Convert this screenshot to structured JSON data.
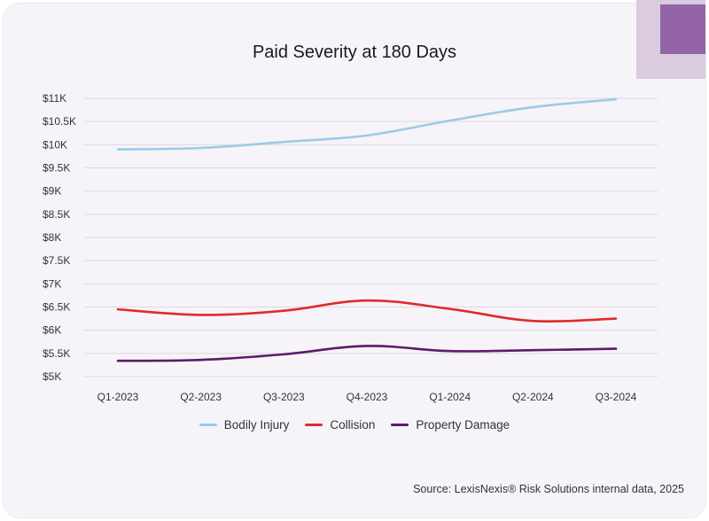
{
  "title": "Paid Severity at 180 Days",
  "source": "Source: LexisNexis® Risk Solutions internal data, 2025",
  "colors": {
    "background": "#f6f4f8",
    "accent": "#9364a8",
    "accent_light": "#dacbe0"
  },
  "chart_data": {
    "type": "line",
    "title": "Paid Severity at 180 Days",
    "xlabel": "",
    "ylabel": "",
    "categories": [
      "Q1-2023",
      "Q2-2023",
      "Q3-2023",
      "Q4-2023",
      "Q1-2024",
      "Q2-2024",
      "Q3-2024"
    ],
    "ylim": [
      5000,
      11000
    ],
    "yticks": [
      5000,
      5500,
      6000,
      6500,
      7000,
      7500,
      8000,
      8500,
      9000,
      9500,
      10000,
      10500,
      11000
    ],
    "ytick_labels": [
      "$5K",
      "$5.5K",
      "$6K",
      "$6.5K",
      "$7K",
      "$7.5K",
      "$8K",
      "$8.5K",
      "$9K",
      "$9.5K",
      "$10K",
      "$10.5K",
      "$11K"
    ],
    "grid": true,
    "legend_position": "bottom",
    "series": [
      {
        "name": "Bodily Injury",
        "color": "#9ccbe6",
        "values": [
          9900,
          9930,
          10060,
          10200,
          10520,
          10810,
          10980
        ]
      },
      {
        "name": "Collision",
        "color": "#e02a2a",
        "values": [
          6450,
          6330,
          6420,
          6640,
          6460,
          6200,
          6250
        ]
      },
      {
        "name": "Property Damage",
        "color": "#5e1a6b",
        "values": [
          5340,
          5360,
          5480,
          5660,
          5550,
          5570,
          5600
        ]
      }
    ]
  }
}
